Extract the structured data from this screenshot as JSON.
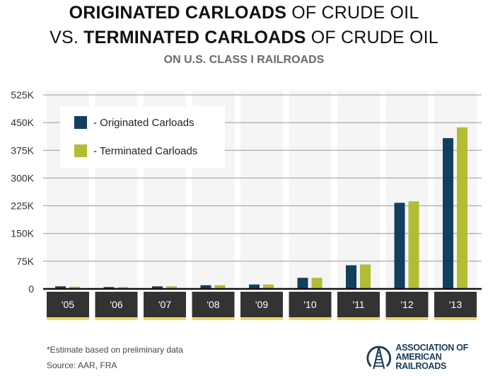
{
  "chart_data": {
    "type": "bar",
    "title_line1_bold": "ORIGINATED CARLOADS",
    "title_line1_rest": " OF CRUDE OIL",
    "title_line2_prefix": "VS. ",
    "title_line2_bold": "TERMINATED CARLOADS",
    "title_line2_rest": " OF CRUDE OIL",
    "subtitle": "ON U.S. CLASS I RAILROADS",
    "xlabel": "",
    "ylabel": "",
    "categories": [
      "'05",
      "'06",
      "'07",
      "'08",
      "'09",
      "'10",
      "'11",
      "'12",
      "'13"
    ],
    "series": [
      {
        "name": "Originated Carloads",
        "legend_label": "- Originated Carloads",
        "color": "#123f5e",
        "values": [
          7000,
          5000,
          7000,
          10000,
          12000,
          30000,
          64000,
          233000,
          408000
        ]
      },
      {
        "name": "Terminated Carloads",
        "legend_label": "- Terminated Carloads",
        "color": "#b2bd34",
        "values": [
          6000,
          5000,
          7000,
          10000,
          12000,
          30000,
          66000,
          237000,
          437000
        ]
      }
    ],
    "ylim": [
      0,
      525000
    ],
    "yticks": [
      0,
      75000,
      150000,
      225000,
      300000,
      375000,
      450000,
      525000
    ],
    "ytick_labels": [
      "0",
      "75K",
      "150K",
      "225K",
      "300K",
      "375K",
      "450K",
      "525K"
    ],
    "grid": true,
    "legend_position": "top-left"
  },
  "footer": {
    "note": "*Estimate based on preliminary data",
    "source": "Source: AAR, FRA"
  },
  "logo": {
    "line1": "ASSOCIATION OF",
    "line2": "AMERICAN RAILROADS"
  },
  "colors": {
    "column_bg": "#f5f5f5",
    "label_box": "#333333",
    "label_strip": "#f2d55a",
    "grid": "#9a9a9a"
  }
}
